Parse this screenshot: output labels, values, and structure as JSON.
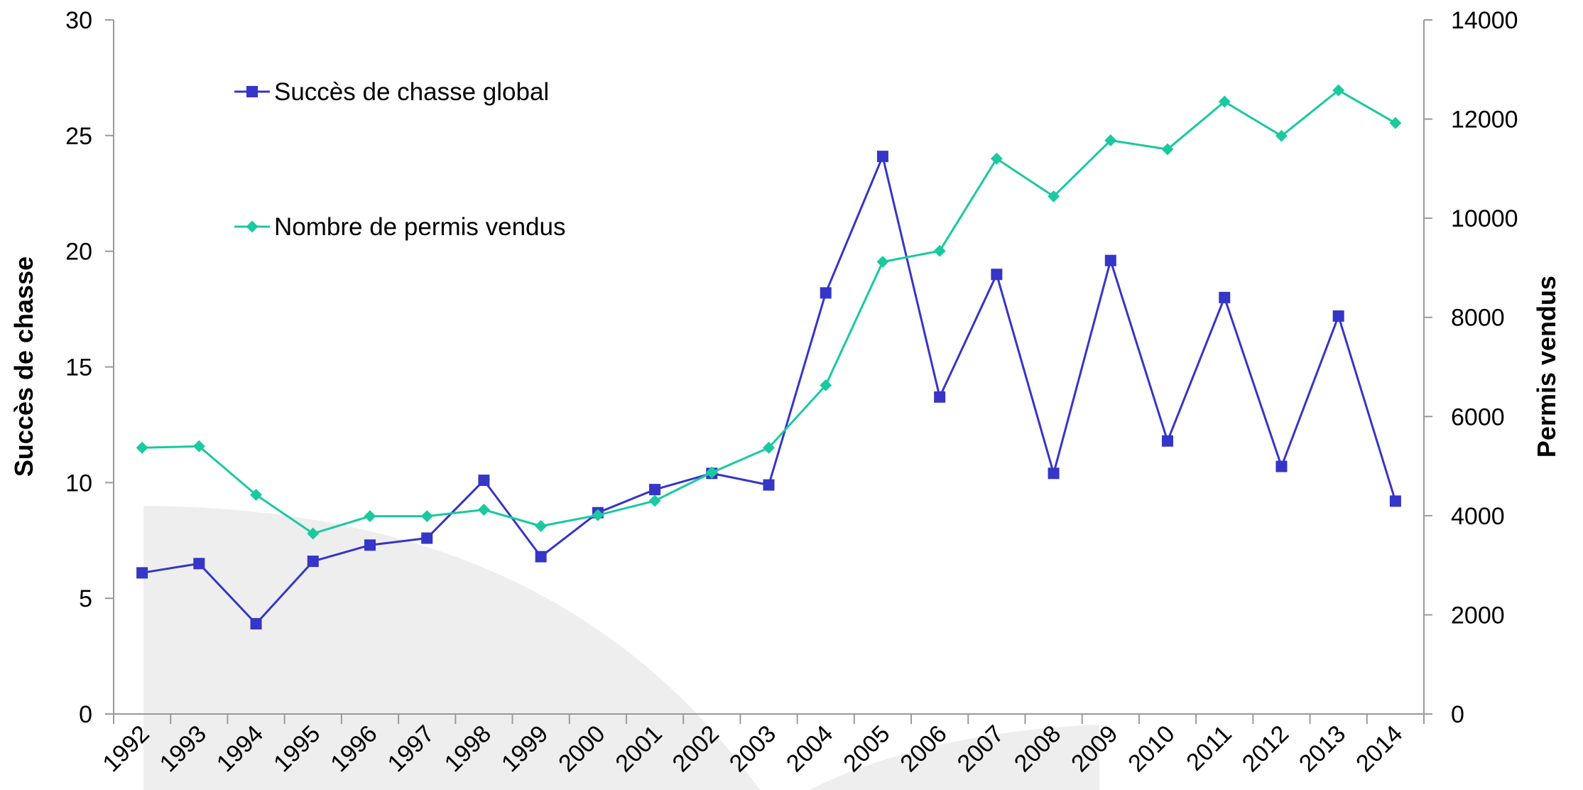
{
  "chart_data": {
    "type": "line",
    "x": [
      "1992",
      "1993",
      "1994",
      "1995",
      "1996",
      "1997",
      "1998",
      "1999",
      "2000",
      "2001",
      "2002",
      "2003",
      "2004",
      "2005",
      "2006",
      "2007",
      "2008",
      "2009",
      "2010",
      "2011",
      "2012",
      "2013",
      "2014"
    ],
    "series": [
      {
        "name": "Succès de chasse global",
        "axis": "left",
        "color": "#3535c8",
        "marker": "square",
        "values": [
          6.1,
          6.5,
          3.9,
          6.6,
          7.3,
          7.6,
          10.1,
          6.8,
          8.7,
          9.7,
          10.4,
          9.9,
          18.2,
          24.1,
          13.7,
          19.0,
          10.4,
          19.6,
          11.8,
          18.0,
          10.7,
          17.2,
          9.2
        ]
      },
      {
        "name": "Nombre de permis vendus",
        "axis": "right",
        "color": "#1ac9a0",
        "marker": "diamond",
        "values": [
          5370,
          5400,
          4420,
          3640,
          3990,
          3990,
          4120,
          3790,
          4010,
          4300,
          4870,
          5370,
          6630,
          9120,
          9340,
          11200,
          10440,
          11570,
          11390,
          12350,
          11660,
          12580,
          11920
        ]
      }
    ],
    "y_left": {
      "label": "Succès de chasse",
      "ylim": [
        0,
        30
      ],
      "ticks": [
        0,
        5,
        10,
        15,
        20,
        25,
        30
      ]
    },
    "y_right": {
      "label": "Permis vendus",
      "ylim": [
        0,
        14000
      ],
      "ticks": [
        0,
        2000,
        4000,
        6000,
        8000,
        10000,
        12000,
        14000
      ]
    },
    "xlabel": "",
    "title": "",
    "grid": false,
    "legend": "top-left"
  }
}
